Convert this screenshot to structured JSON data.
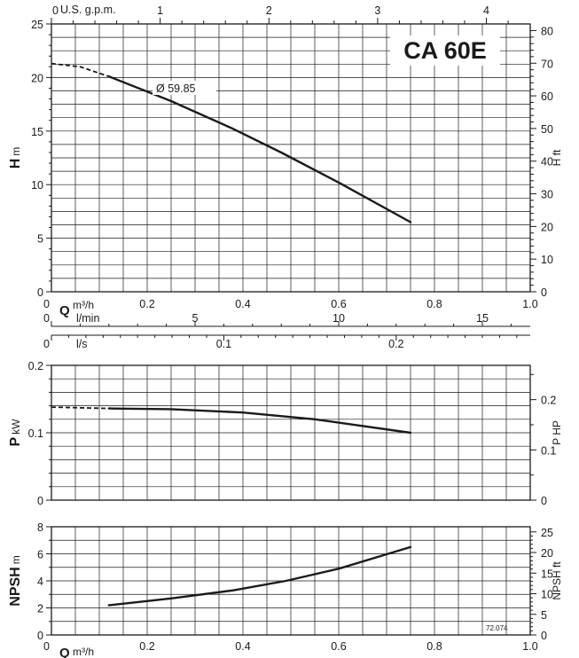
{
  "chart_data": [
    {
      "type": "line",
      "title": "CA 60E",
      "ylabel": "H m",
      "ylabel_right": "H ft",
      "xlabel": "Q m³/h",
      "xlim": [
        0,
        1.0
      ],
      "ylim": [
        0,
        25
      ],
      "y_ticks": [
        0,
        5,
        10,
        15,
        20,
        25
      ],
      "y_right_ticks": [
        0,
        10,
        20,
        30,
        40,
        50,
        60,
        70,
        80
      ],
      "x_ticks": [
        "0",
        "0.2",
        "0.4",
        "0.6",
        "0.8",
        "1.0"
      ],
      "top_axis": {
        "label": "U.S. g.p.m.",
        "ticks": [
          "0",
          "1",
          "2",
          "3",
          "4"
        ]
      },
      "grid": true,
      "series": [
        {
          "name": "Ø 59.85",
          "x": [
            0.12,
            0.25,
            0.38,
            0.48,
            0.6,
            0.75
          ],
          "y": [
            20.1,
            17.8,
            15.2,
            13.0,
            10.2,
            6.5
          ],
          "extrapolated": {
            "x": [
              0.0,
              0.06,
              0.12
            ],
            "y": [
              21.3,
              21.0,
              20.1
            ]
          }
        }
      ]
    },
    {
      "type": "line",
      "ylabel": "P kW",
      "ylabel_right": "P HP",
      "xlim": [
        0,
        1.0
      ],
      "ylim": [
        0,
        0.2
      ],
      "y_ticks": [
        "0",
        "0.1",
        "0.2"
      ],
      "y_right_ticks": [
        "0",
        "0.1",
        "0.2"
      ],
      "axis_lmin": {
        "label": "l/min",
        "ticks": [
          "0",
          "5",
          "10",
          "15"
        ]
      },
      "axis_ls": {
        "label": "l/s",
        "ticks": [
          "0",
          "0.1",
          "0.2"
        ]
      },
      "grid": true,
      "series": [
        {
          "x": [
            0.12,
            0.25,
            0.4,
            0.55,
            0.75
          ],
          "y": [
            0.136,
            0.135,
            0.13,
            0.12,
            0.1
          ],
          "extrapolated": {
            "x": [
              0.0,
              0.12
            ],
            "y": [
              0.138,
              0.136
            ]
          }
        }
      ]
    },
    {
      "type": "line",
      "ylabel": "NPSH m",
      "ylabel_right": "NPSH ft",
      "xlabel": "Q m³/h",
      "xlim": [
        0,
        1.0
      ],
      "ylim": [
        0,
        8
      ],
      "y_ticks": [
        0,
        2,
        4,
        6,
        8
      ],
      "y_right_ticks": [
        0,
        5,
        10,
        15,
        20,
        25
      ],
      "x_ticks": [
        "0",
        "0.2",
        "0.4",
        "0.6",
        "0.8",
        "1.0"
      ],
      "grid": true,
      "annotation": "72.074",
      "series": [
        {
          "x": [
            0.12,
            0.25,
            0.38,
            0.49,
            0.6,
            0.75
          ],
          "y": [
            2.2,
            2.7,
            3.3,
            4.0,
            4.9,
            6.5
          ]
        }
      ]
    }
  ]
}
